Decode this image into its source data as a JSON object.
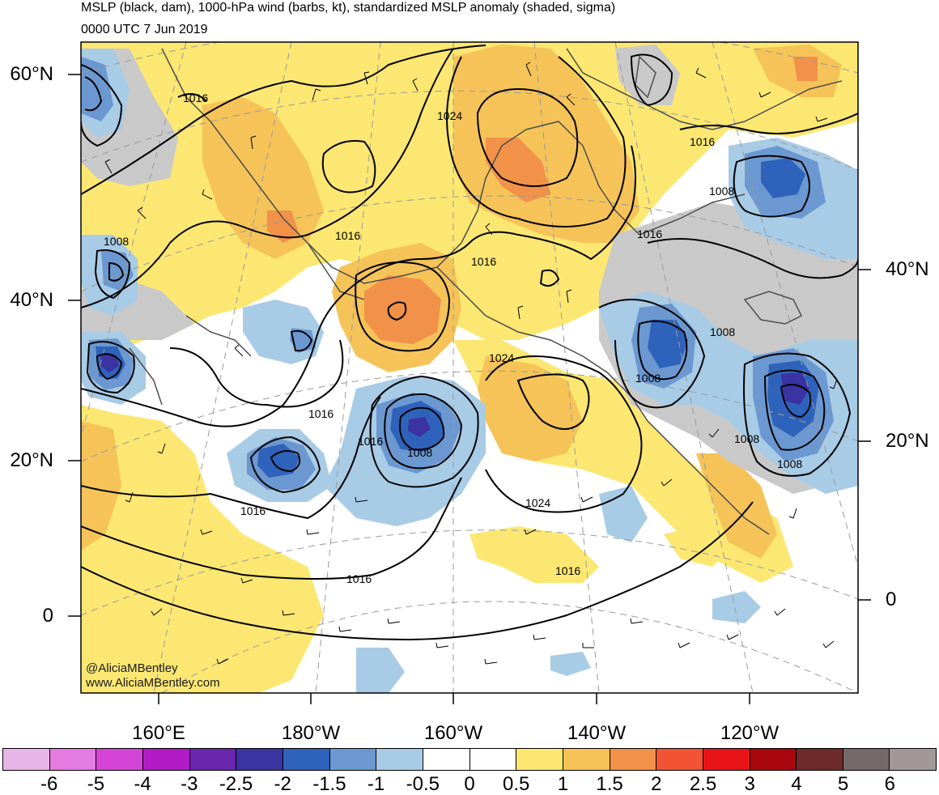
{
  "header": {
    "title": "MSLP (black, dam), 1000-hPa wind (barbs, kt), standardized MSLP anomaly (shaded, sigma)",
    "valid_time": "0000 UTC 7 Jun 2019"
  },
  "lat_labels_left": [
    "60°N",
    "40°N",
    "20°N",
    "0"
  ],
  "lat_labels_right": [
    "40°N",
    "20°N",
    "0"
  ],
  "lon_labels": [
    "160°E",
    "180°W",
    "160°W",
    "140°W",
    "120°W"
  ],
  "credit": [
    "@AliciaMBentley",
    "www.AliciaMBentley.com"
  ],
  "isobar_labels": [
    "1016",
    "1008",
    "1016",
    "1024",
    "1016",
    "1016",
    "1008",
    "1016",
    "1024",
    "1016",
    "1008",
    "1008",
    "1016",
    "1008",
    "1008",
    "1016",
    "1024",
    "1016",
    "1016"
  ],
  "colorbar": {
    "labels": [
      "-6",
      "-5",
      "-4",
      "-3",
      "-2.5",
      "-2",
      "-1.5",
      "-1",
      "-0.5",
      "0",
      "0.5",
      "1",
      "1.5",
      "2",
      "2.5",
      "3",
      "4",
      "5",
      "6"
    ],
    "colors": [
      "#e8b6e6",
      "#e37be0",
      "#d444d6",
      "#b21bc6",
      "#6a27ad",
      "#3a33a1",
      "#2f63bb",
      "#6b98d0",
      "#a8cbe6",
      "#ffffff",
      "#ffffff",
      "#fbe772",
      "#f5c358",
      "#f29148",
      "#f25332",
      "#e8141a",
      "#a8070e",
      "#6e2929",
      "#746a6a",
      "#a39898"
    ]
  }
}
